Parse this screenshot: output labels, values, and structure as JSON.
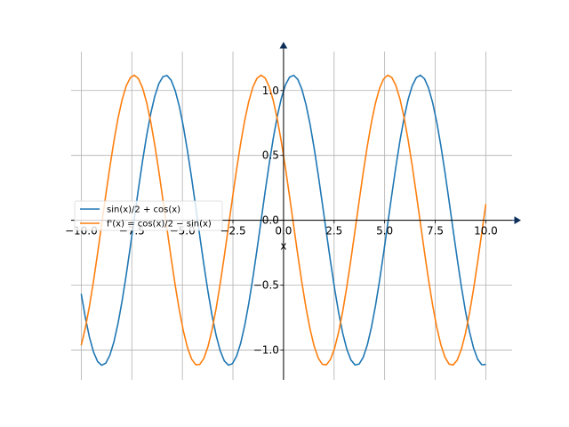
{
  "chart_data": {
    "type": "line",
    "title": "",
    "xlabel": "x",
    "ylabel": "",
    "xlim": [
      -10.5,
      11.3
    ],
    "ylim": [
      -1.23,
      1.3
    ],
    "grid": true,
    "legend": "left",
    "x_ticks": [
      -10.0,
      -7.5,
      -5.0,
      -2.5,
      0.0,
      2.5,
      5.0,
      7.5,
      10.0
    ],
    "x_tick_labels": [
      "−10.0",
      "−7.5",
      "−5.0",
      "−2.5",
      "0.0",
      "2.5",
      "5.0",
      "7.5",
      "10.0"
    ],
    "y_ticks": [
      -1.0,
      -0.5,
      0.0,
      0.5,
      1.0
    ],
    "y_tick_labels": [
      "−1.0",
      "−0.5",
      "0.0",
      "0.5",
      "1.0"
    ],
    "x_domain": [
      -10,
      10
    ],
    "series": [
      {
        "name": "sin(x)/2 + cos(x)",
        "color": "#1f77b4"
      },
      {
        "name": "f'(x) = cos(x)/2 − sin(x)",
        "color": "#ff7f0e"
      }
    ]
  }
}
